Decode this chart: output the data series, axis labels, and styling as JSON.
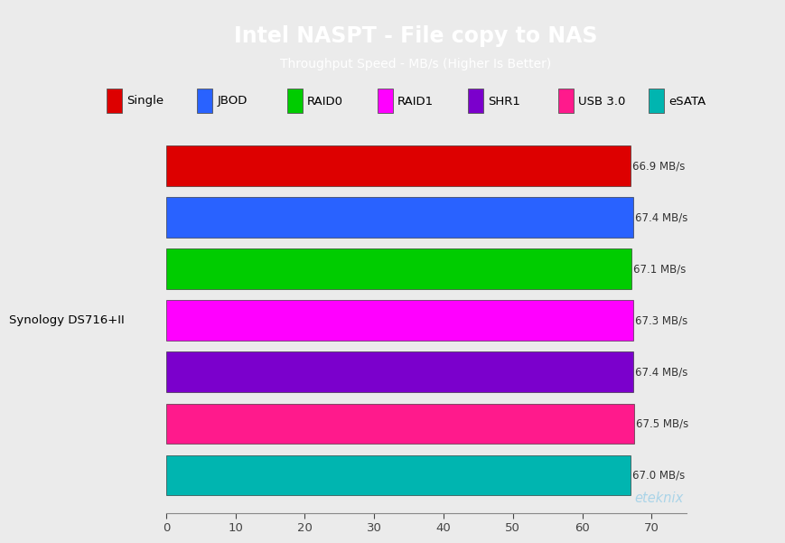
{
  "title": "Intel NASPT - File copy to NAS",
  "subtitle": "Throughput Speed - MB/s (Higher Is Better)",
  "title_bg_color": "#29abe2",
  "title_text_color": "#ffffff",
  "chart_bg_color": "#ebebeb",
  "plot_bg_color": "#ebebeb",
  "categories": [
    "Single",
    "JBOD",
    "RAID0",
    "RAID1",
    "SHR1",
    "USB 3.0",
    "eSATA"
  ],
  "values": [
    66.9,
    67.4,
    67.1,
    67.3,
    67.4,
    67.5,
    67.0
  ],
  "bar_colors": [
    "#dd0000",
    "#2962ff",
    "#00cc00",
    "#ff00ff",
    "#7b00cc",
    "#ff1a8c",
    "#00b5b0"
  ],
  "legend_colors": [
    "#dd0000",
    "#2962ff",
    "#00cc00",
    "#ff00ff",
    "#7b00cc",
    "#ff1a8c",
    "#00b5b0"
  ],
  "value_labels": [
    "66.9 MB/s",
    "67.4 MB/s",
    "67.1 MB/s",
    "67.3 MB/s",
    "67.4 MB/s",
    "67.5 MB/s",
    "67.0 MB/s"
  ],
  "y_label": "Synology DS716+II",
  "xlim": [
    0,
    75
  ],
  "xticks": [
    0,
    10,
    20,
    30,
    40,
    50,
    60,
    70
  ],
  "watermark": "eteknix",
  "watermark_color": "#aad4e8"
}
